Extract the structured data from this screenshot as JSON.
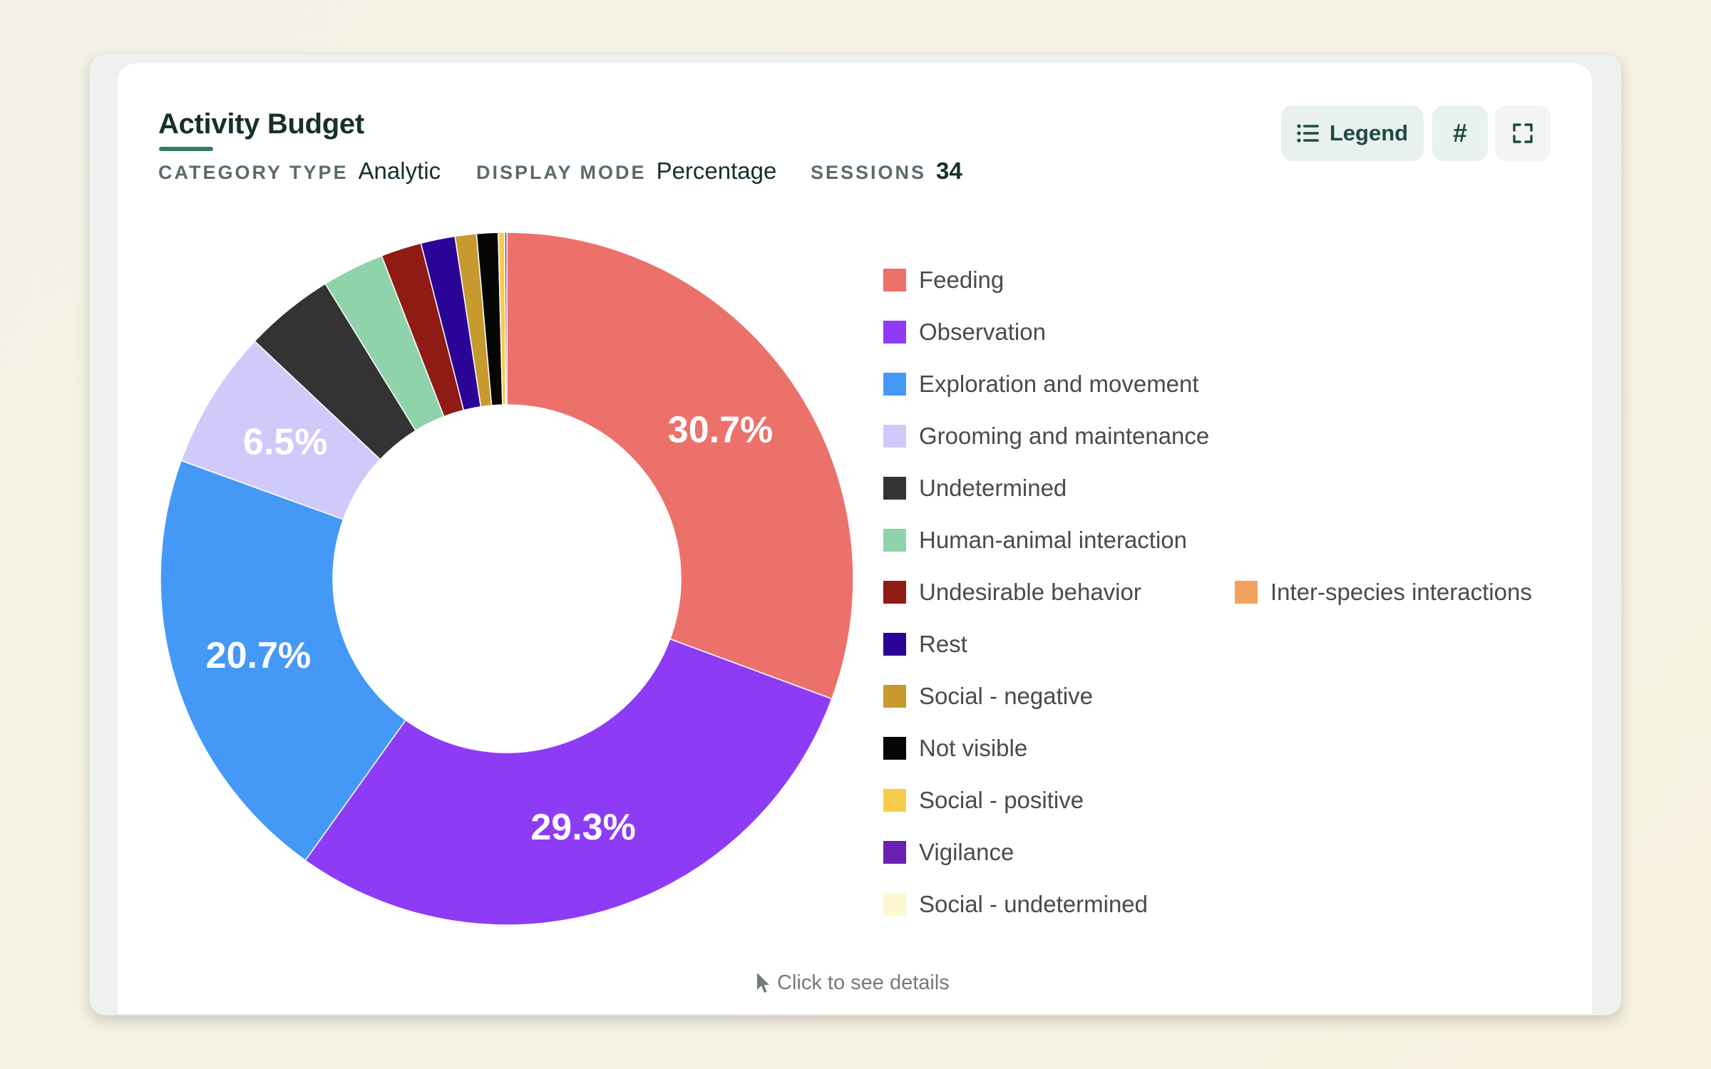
{
  "card": {
    "title": "Activity Budget",
    "meta": {
      "category_type_label": "CATEGORY TYPE",
      "category_type_value": "Analytic",
      "display_mode_label": "DISPLAY MODE",
      "display_mode_value": "Percentage",
      "sessions_label": "SESSIONS",
      "sessions_value": "34"
    },
    "buttons": {
      "legend_label": "Legend",
      "hash_label": "#",
      "legend_icon": "list-icon",
      "fullscreen_icon": "fullscreen-icon"
    },
    "hint": {
      "icon": "cursor-pointer-icon",
      "text": "Click to see details"
    }
  },
  "chart_data": {
    "type": "pie",
    "donut": true,
    "unit": "%",
    "legend_position": "right",
    "slices": [
      {
        "label": "Feeding",
        "value": 30.7,
        "color": "#ec716b",
        "shown_label": "30.7%"
      },
      {
        "label": "Observation",
        "value": 29.3,
        "color": "#8e3bf6",
        "shown_label": "29.3%"
      },
      {
        "label": "Exploration and movement",
        "value": 20.7,
        "color": "#4499f7",
        "shown_label": "20.7%"
      },
      {
        "label": "Grooming and maintenance",
        "value": 6.5,
        "color": "#d0cafa",
        "shown_label": "6.5%"
      },
      {
        "label": "Undetermined",
        "value": 4.2,
        "color": "#333333"
      },
      {
        "label": "Human-animal interaction",
        "value": 2.9,
        "color": "#8fd3aa"
      },
      {
        "label": "Undesirable behavior",
        "value": 1.9,
        "color": "#8f1b14"
      },
      {
        "label": "Rest",
        "value": 1.6,
        "color": "#2a0496"
      },
      {
        "label": "Social - negative",
        "value": 1.0,
        "color": "#c69a2f"
      },
      {
        "label": "Not visible",
        "value": 1.0,
        "color": "#050505"
      },
      {
        "label": "Social - positive",
        "value": 0.3,
        "color": "#f5cd4a"
      },
      {
        "label": "Vigilance",
        "value": 0.1,
        "color": "#6a1fb0"
      },
      {
        "label": "Social - undetermined",
        "value": 0.0,
        "color": "#fdf8cf"
      },
      {
        "label": "Inter-species interactions",
        "value": 0.0,
        "color": "#f2a15f"
      }
    ]
  }
}
